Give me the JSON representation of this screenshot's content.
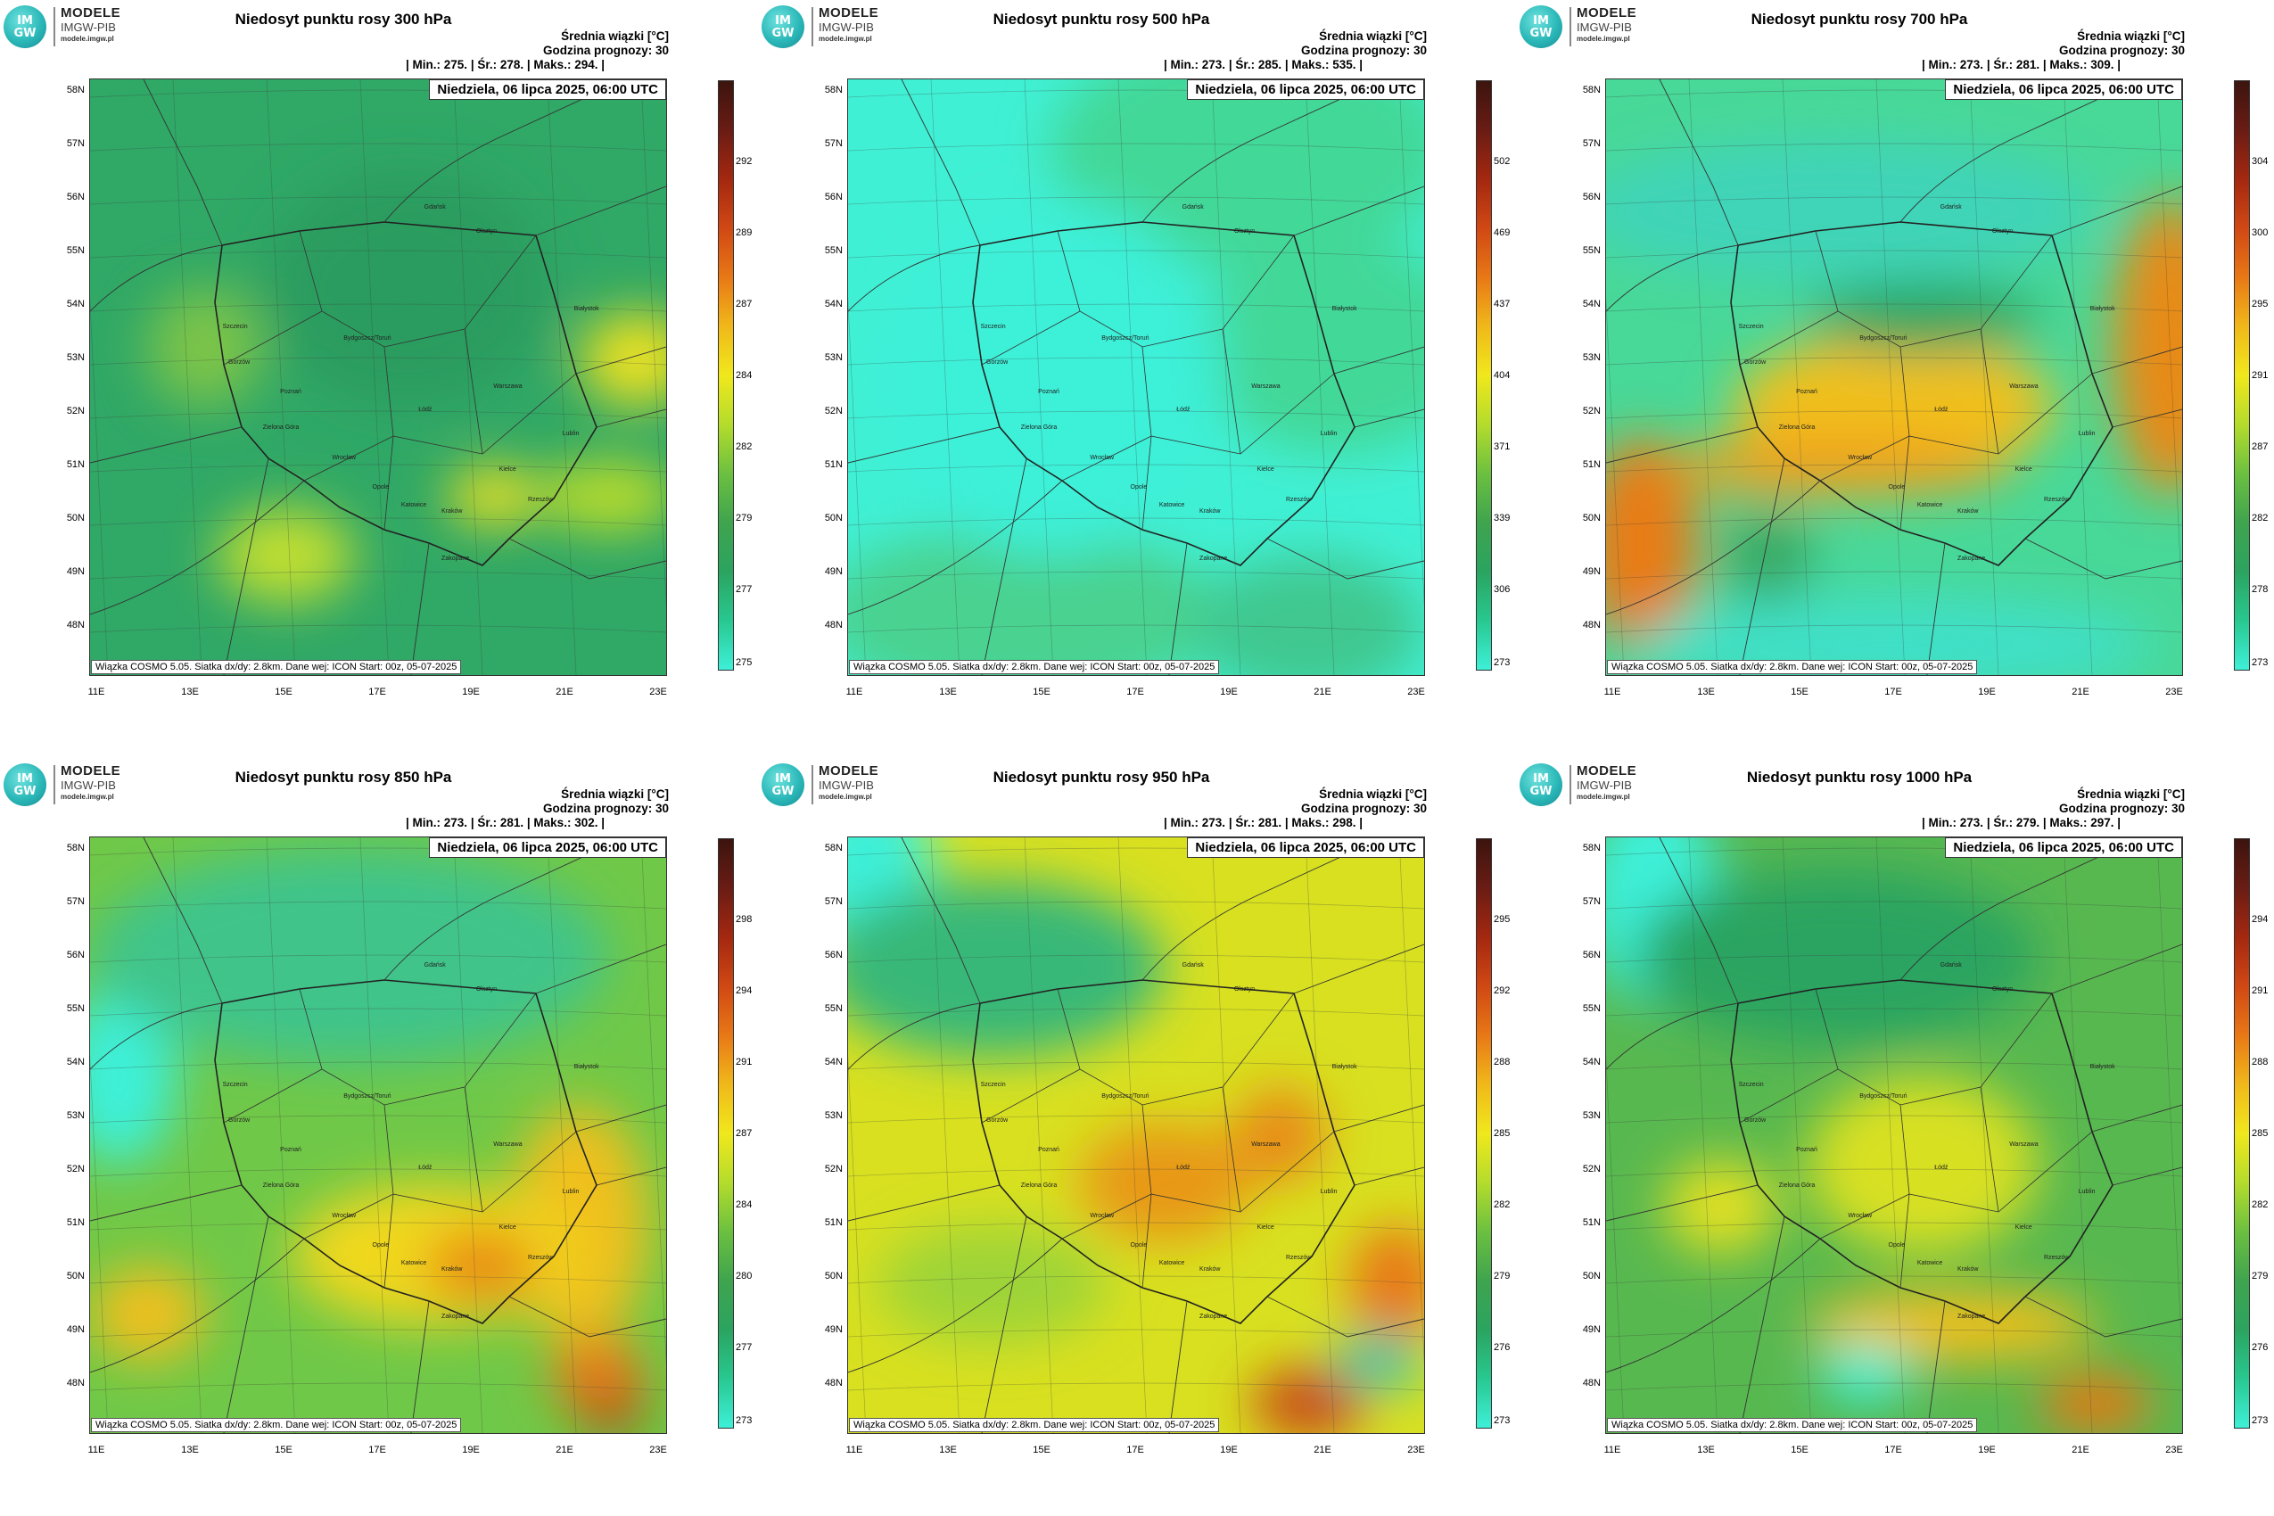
{
  "logo": {
    "circle_top": "IM",
    "circle_bottom": "GW",
    "line1": "MODELE",
    "line2": "IMGW-PIB",
    "line3": "modele.imgw.pl"
  },
  "common": {
    "units_label": "Średnia wiązki [°C]",
    "forecast_hour": "Godzina prognozy: 30",
    "date_label": "Niedziela, 06 lipca 2025, 06:00 UTC",
    "footer": "Wiązka COSMO 5.05. Siatka dx/dy: 2.8km. Dane wej: ICON Start: 00z, 05-07-2025",
    "lat_labels": [
      "58N",
      "57N",
      "56N",
      "55N",
      "54N",
      "53N",
      "52N",
      "51N",
      "50N",
      "49N",
      "48N"
    ],
    "lon_labels": [
      "11E",
      "13E",
      "15E",
      "17E",
      "19E",
      "21E",
      "23E"
    ]
  },
  "cities": [
    "Gdańsk",
    "Olsztyn",
    "Szczecin",
    "Bydgoszcz/Toruń",
    "Białystok",
    "Gorzów",
    "Poznań",
    "Warszawa",
    "Łódź",
    "Zielona Góra",
    "Lublin",
    "Wrocław",
    "Kielce",
    "Opole",
    "Katowice",
    "Kraków",
    "Rzeszów",
    "Zakopane"
  ],
  "colors": {
    "scale": [
      "#3ef0d8",
      "#28c890",
      "#2ba460",
      "#3fa44e",
      "#6cc040",
      "#b4dc2c",
      "#f0e81c",
      "#f0b81a",
      "#e87816",
      "#d04814",
      "#a42810",
      "#6a1c14",
      "#3c140e"
    ]
  },
  "panels": [
    {
      "title": "Niedosyt punktu rosy 300 hPa",
      "stats": {
        "min": "275.",
        "avg": "278.",
        "max": "294."
      },
      "cbar_ticks": [
        "292",
        "289",
        "287",
        "284",
        "282",
        "279",
        "277",
        "275"
      ]
    },
    {
      "title": "Niedosyt punktu rosy 500 hPa",
      "stats": {
        "min": "273.",
        "avg": "285.",
        "max": "535."
      },
      "cbar_ticks": [
        "502",
        "469",
        "437",
        "404",
        "371",
        "339",
        "306",
        "273"
      ]
    },
    {
      "title": "Niedosyt punktu rosy 700 hPa",
      "stats": {
        "min": "273.",
        "avg": "281.",
        "max": "309."
      },
      "cbar_ticks": [
        "304",
        "300",
        "295",
        "291",
        "287",
        "282",
        "278",
        "273"
      ]
    },
    {
      "title": "Niedosyt punktu rosy 850 hPa",
      "stats": {
        "min": "273.",
        "avg": "281.",
        "max": "302."
      },
      "cbar_ticks": [
        "298",
        "294",
        "291",
        "287",
        "284",
        "280",
        "277",
        "273"
      ]
    },
    {
      "title": "Niedosyt punktu rosy 950 hPa",
      "stats": {
        "min": "273.",
        "avg": "281.",
        "max": "298."
      },
      "cbar_ticks": [
        "295",
        "292",
        "288",
        "285",
        "282",
        "279",
        "276",
        "273"
      ]
    },
    {
      "title": "Niedosyt punktu rosy 1000 hPa",
      "stats": {
        "min": "273.",
        "avg": "279.",
        "max": "297."
      },
      "cbar_ticks": [
        "294",
        "291",
        "288",
        "285",
        "282",
        "279",
        "276",
        "273"
      ]
    }
  ]
}
